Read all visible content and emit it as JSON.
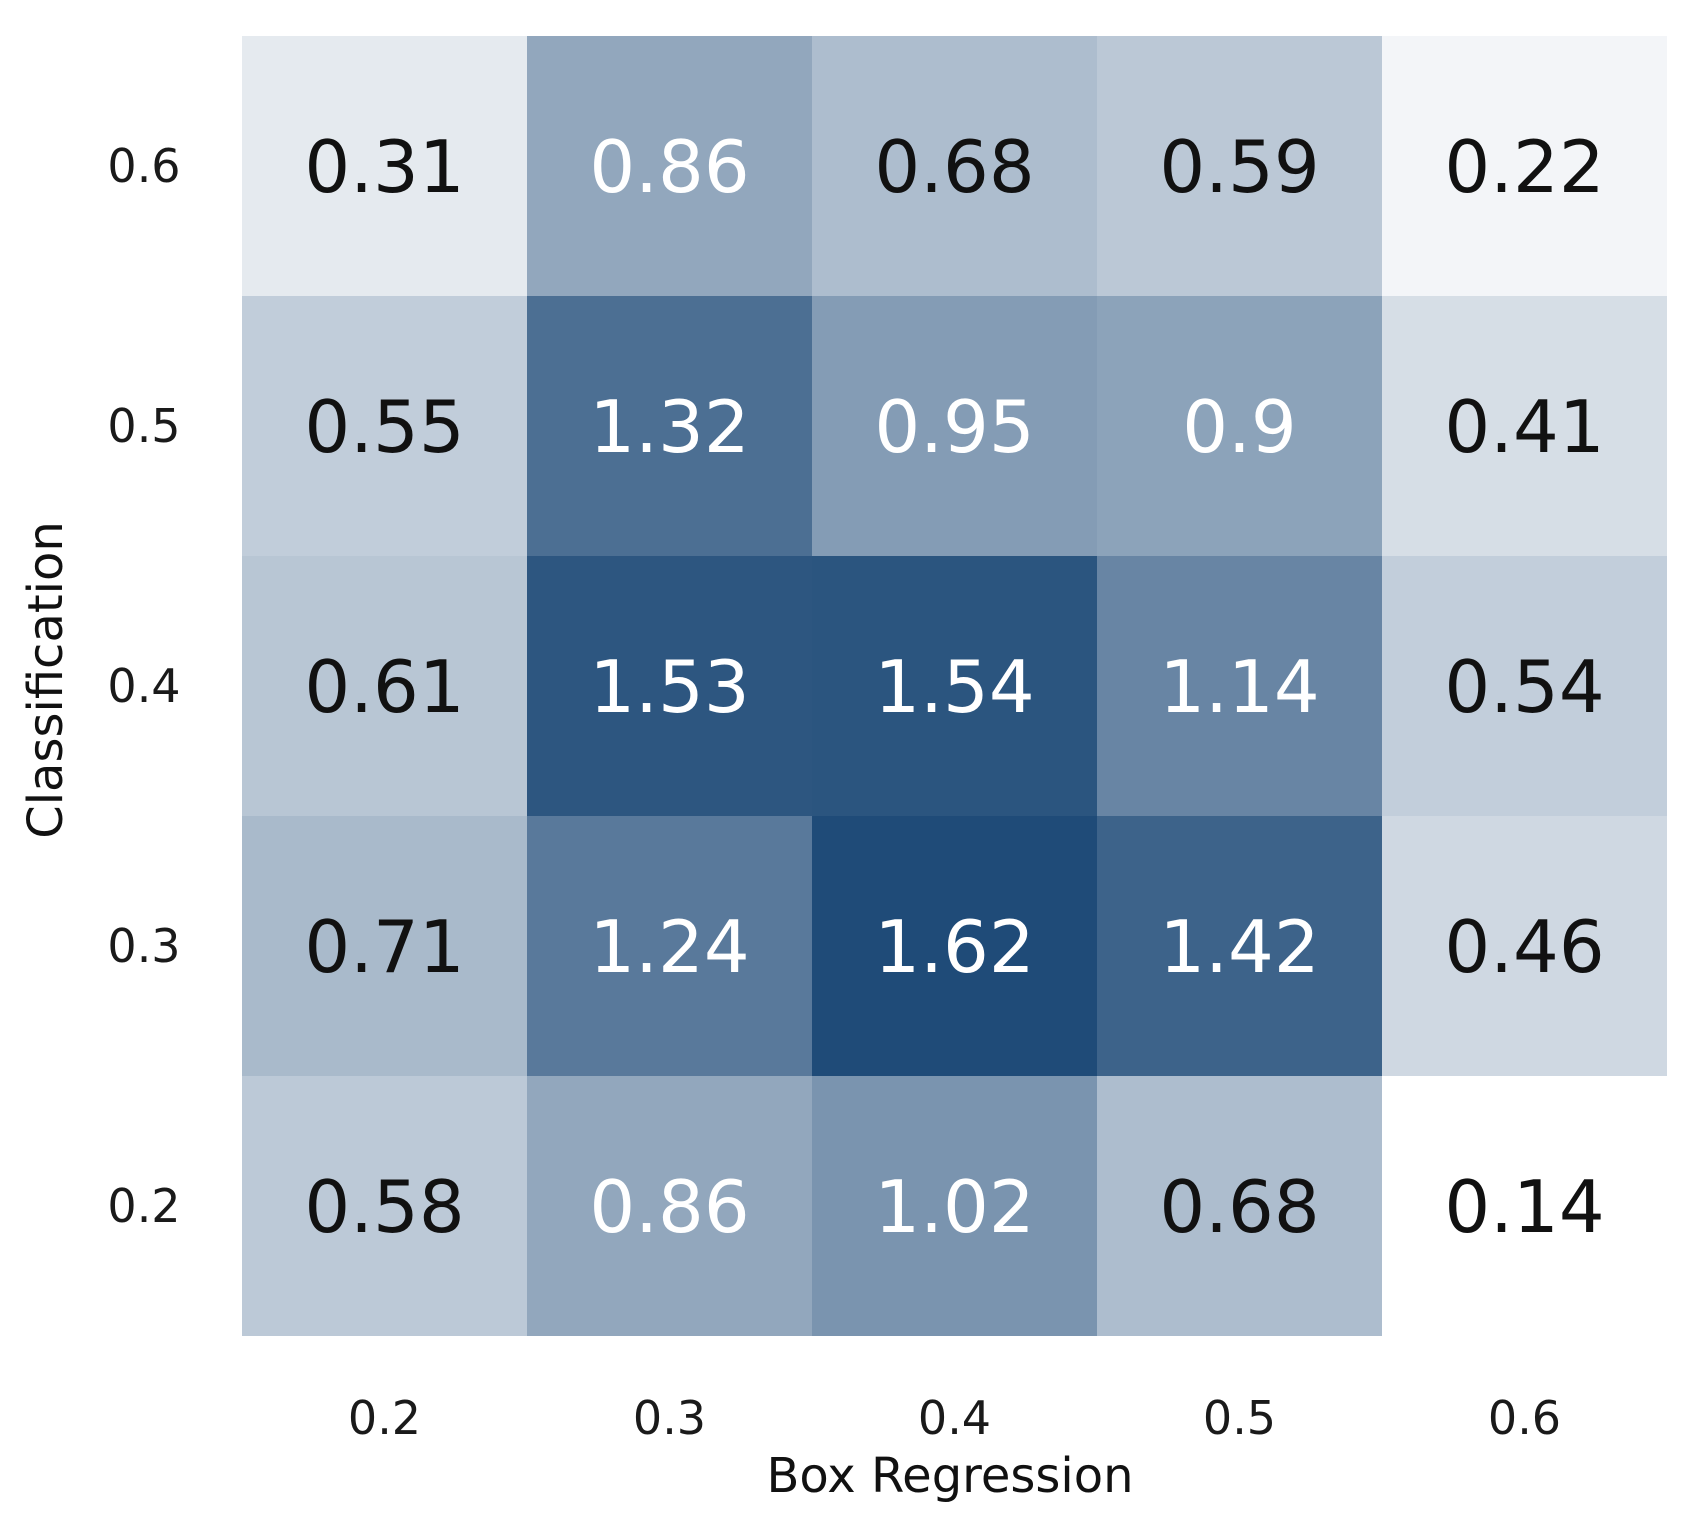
{
  "chart_data": {
    "type": "heatmap",
    "title": "",
    "xlabel": "Box Regression",
    "ylabel": "Classification",
    "x_categories": [
      "0.2",
      "0.3",
      "0.4",
      "0.5",
      "0.6"
    ],
    "y_categories": [
      "0.6",
      "0.5",
      "0.4",
      "0.3",
      "0.2"
    ],
    "values": [
      [
        0.31,
        0.86,
        0.68,
        0.59,
        0.22
      ],
      [
        0.55,
        1.32,
        0.95,
        0.9,
        0.41
      ],
      [
        0.61,
        1.53,
        1.54,
        1.14,
        0.54
      ],
      [
        0.71,
        1.24,
        1.62,
        1.42,
        0.46
      ],
      [
        0.58,
        0.86,
        1.02,
        0.68,
        0.14
      ]
    ],
    "color_range": [
      0.14,
      1.62
    ],
    "colors": {
      "low": "#ffffff",
      "high": "#1f4b78",
      "label_dark": "#111111",
      "label_light": "#ffffff"
    },
    "label_light_threshold": 0.7,
    "grid": false,
    "legend": "none"
  }
}
